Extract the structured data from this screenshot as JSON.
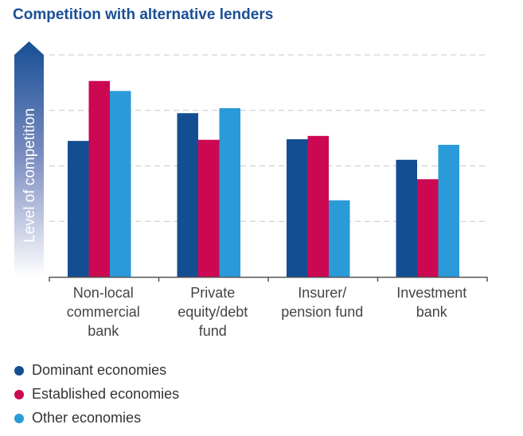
{
  "chart_data": {
    "type": "bar",
    "title": "Competition with alternative lenders",
    "xlabel": "",
    "ylabel": "Level of competition",
    "ylim": [
      0,
      4
    ],
    "grid": true,
    "legend_position": "bottom-left",
    "categories": [
      [
        "Non-local",
        "commercial",
        "bank"
      ],
      [
        "Private",
        "equity/debt",
        "fund"
      ],
      [
        "Insurer/",
        "pension fund"
      ],
      [
        "Investment",
        "bank"
      ]
    ],
    "series": [
      {
        "name": "Dominant economies",
        "color": "#144e92",
        "values": [
          2.45,
          2.95,
          2.48,
          2.11
        ]
      },
      {
        "name": "Established economies",
        "color": "#cc0853",
        "values": [
          3.53,
          2.47,
          2.54,
          1.76
        ]
      },
      {
        "name": "Other economies",
        "color": "#2a9ad8",
        "values": [
          3.35,
          3.04,
          1.38,
          2.38
        ]
      }
    ]
  }
}
